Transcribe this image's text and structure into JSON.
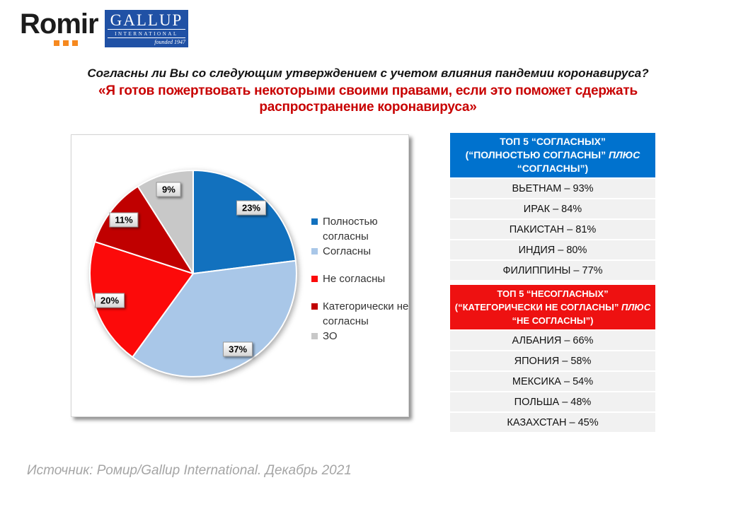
{
  "logos": {
    "romir": "Romir",
    "gallup": {
      "name": "GALLUP",
      "subtitle": "INTERNATIONAL",
      "founded": "founded 1947"
    }
  },
  "title": {
    "question": "Согласны ли Вы со следующим утверждением с учетом влияния пандемии коронавируса?",
    "statement": "«Я готов пожертвовать некоторыми своими правами, если это поможет сдержать распространение коронавируса»"
  },
  "chart_data": {
    "type": "pie",
    "unit": "%",
    "start_angle_deg": 0,
    "direction": "clockwise",
    "legend_position": "right",
    "slices": [
      {
        "label": "Полностью согласны",
        "value": 23,
        "color": "#1271BE"
      },
      {
        "label": "Согласны",
        "value": 37,
        "color": "#A9C7E8"
      },
      {
        "label": "Не согласны",
        "value": 20,
        "color": "#FC0A0A"
      },
      {
        "label": "Категорически не согласны",
        "value": 11,
        "color": "#C00000"
      },
      {
        "label": "ЗО",
        "value": 9,
        "color": "#C8C8C8"
      }
    ],
    "data_labels": [
      "23%",
      "37%",
      "20%",
      "11%",
      "9%"
    ]
  },
  "tables": {
    "agree": {
      "header_line1": "ТОП 5 “СОГЛАСНЫХ”",
      "header_line2": "(“ПОЛНОСТЬЮ СОГЛАСНЫ” ",
      "header_line2_italic": "ПЛЮС",
      "header_line3": "“СОГЛАСНЫ”)",
      "header_color": "#0072CE",
      "rows": [
        "ВЬЕТНАМ – 93%",
        "ИРАК – 84%",
        "ПАКИСТАН – 81%",
        "ИНДИЯ – 80%",
        "ФИЛИППИНЫ – 77%"
      ]
    },
    "disagree": {
      "header_line1": "ТОП 5 “НЕСОГЛАСНЫХ”",
      "header_line2": "(“КАТЕГОРИЧЕСКИ НЕ СОГЛАСНЫ” ",
      "header_line2_italic": "ПЛЮС",
      "header_line3": "“НЕ СОГЛАСНЫ”)",
      "header_color": "#EE1111",
      "rows": [
        "АЛБАНИЯ – 66%",
        "ЯПОНИЯ – 58%",
        "МЕКСИКА – 54%",
        "ПОЛЬША – 48%",
        "КАЗАХСТАН – 45%"
      ]
    }
  },
  "source": "Источник: Ромир/Gallup International. Декабрь 2021"
}
